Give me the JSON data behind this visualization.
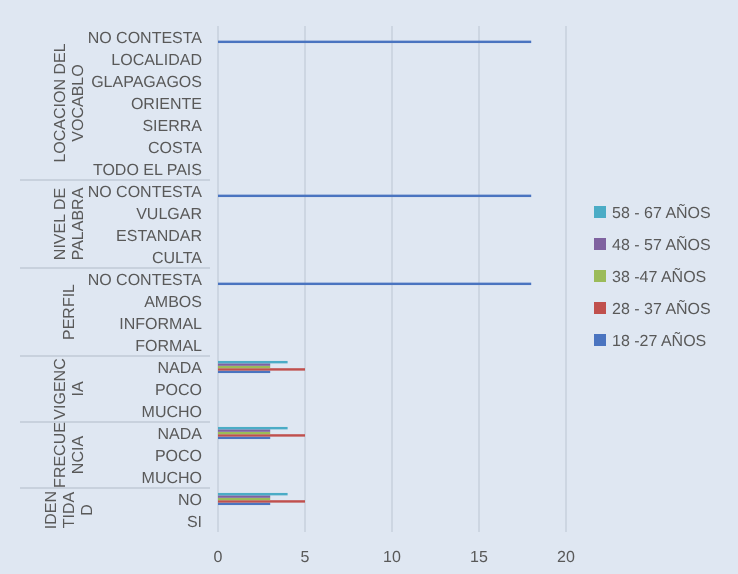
{
  "chart_data": {
    "type": "bar",
    "orientation": "horizontal",
    "categories": [
      "NO CONTESTA",
      "LOCALIDAD",
      "GLAPAGAGOS",
      "ORIENTE",
      "SIERRA",
      "COSTA",
      "TODO EL PAIS",
      "NO CONTESTA",
      "VULGAR",
      "ESTANDAR",
      "CULTA",
      "NO CONTESTA",
      "AMBOS",
      "INFORMAL",
      "FORMAL",
      "NADA",
      "POCO",
      "MUCHO",
      "NADA",
      "POCO",
      "MUCHO",
      "NO",
      "SI"
    ],
    "series": [
      {
        "name": "18 -27 AÑOS",
        "color": "#4a74c0",
        "values": [
          18,
          null,
          null,
          null,
          null,
          null,
          null,
          18,
          null,
          null,
          null,
          18,
          null,
          null,
          null,
          3,
          null,
          null,
          3,
          null,
          null,
          3,
          null
        ]
      },
      {
        "name": "28 - 37 AÑOS",
        "color": "#c0504d",
        "values": [
          null,
          null,
          null,
          null,
          null,
          null,
          null,
          null,
          null,
          null,
          null,
          null,
          null,
          null,
          null,
          5,
          null,
          null,
          5,
          null,
          null,
          5,
          null
        ]
      },
      {
        "name": "38 -47 AÑOS",
        "color": "#9bbb59",
        "values": [
          null,
          null,
          null,
          null,
          null,
          null,
          null,
          null,
          null,
          null,
          null,
          null,
          null,
          null,
          null,
          3,
          null,
          null,
          3,
          null,
          null,
          3,
          null
        ]
      },
      {
        "name": "48 - 57 AÑOS",
        "color": "#7f62a0",
        "values": [
          null,
          null,
          null,
          null,
          null,
          null,
          null,
          null,
          null,
          null,
          null,
          null,
          null,
          null,
          null,
          3,
          null,
          null,
          3,
          null,
          null,
          3,
          null
        ]
      },
      {
        "name": "58 - 67 AÑOS",
        "color": "#4bacc6",
        "values": [
          null,
          null,
          null,
          null,
          null,
          null,
          null,
          null,
          null,
          null,
          null,
          null,
          null,
          null,
          null,
          4,
          null,
          null,
          4,
          null,
          null,
          4,
          null
        ]
      }
    ],
    "annotations": [
      "LOCACION DEL VOCABLO",
      "NIVEL DE PALABRA",
      "PERFIL",
      "VIGENCIA",
      "FRECUENCIA",
      "IDENTIDAD"
    ],
    "xlim": [
      0,
      20
    ],
    "xticks": [
      0,
      5,
      10,
      15,
      20
    ],
    "grid": "x",
    "legend": "right"
  }
}
